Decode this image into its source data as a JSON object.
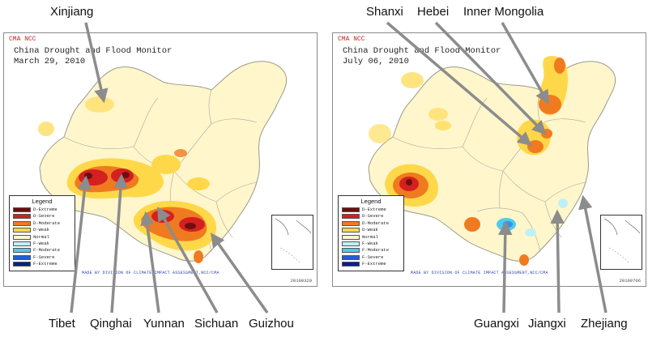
{
  "panels": [
    {
      "agency": "CMA NCC",
      "title": "China Drought and Flood Monitor",
      "date": "March 29, 2010",
      "legend_title": "Legend",
      "credit": "MADE BY DIVISION OF CLIMATE IMPACT ASSESSMENT,NCC/CMA",
      "code": "20100329"
    },
    {
      "agency": "CMA NCC",
      "title": "China Drought and Flood Monitor",
      "date": "July 06, 2010",
      "legend_title": "Legend",
      "credit": "MADE BY DIVISION OF CLIMATE IMPACT ASSESSMENT,NCC/CMA",
      "code": "20100706"
    }
  ],
  "legend_items": [
    {
      "label": "D-Extreme",
      "color": "#6e0f0f"
    },
    {
      "label": "D-Severe",
      "color": "#d42020"
    },
    {
      "label": "D-Moderate",
      "color": "#f07a20"
    },
    {
      "label": "D-Weak",
      "color": "#ffd84a"
    },
    {
      "label": "Normal",
      "color": "#fff6cc"
    },
    {
      "label": "F-Weak",
      "color": "#bff0f8"
    },
    {
      "label": "F-Moderate",
      "color": "#4ecbe8"
    },
    {
      "label": "F-Severe",
      "color": "#1f5fd8"
    },
    {
      "label": "F-Extreme",
      "color": "#0a1f8a"
    }
  ],
  "place_labels": {
    "xinjiang": "Xinjiang",
    "tibet": "Tibet",
    "qinghai": "Qinghai",
    "yunnan": "Yunnan",
    "sichuan": "Sichuan",
    "guizhou": "Guizhou",
    "shanxi": "Shanxi",
    "hebei": "Hebei",
    "inner_mongolia": "Inner Mongolia",
    "guangxi": "Guangxi",
    "jiangxi": "Jiangxi",
    "zhejiang": "Zhejiang"
  }
}
